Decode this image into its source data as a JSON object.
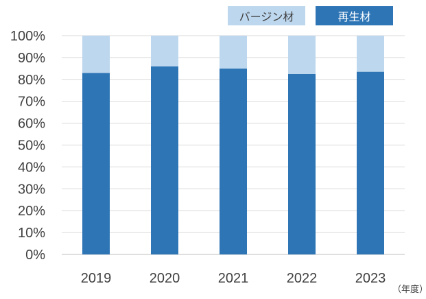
{
  "chart_data": {
    "type": "bar",
    "stacked": true,
    "categories": [
      "2019",
      "2020",
      "2021",
      "2022",
      "2023"
    ],
    "series": [
      {
        "name": "再生材",
        "values": [
          83,
          86,
          85,
          82.5,
          83.5
        ],
        "color": "#2e75b6"
      },
      {
        "name": "バージン材",
        "values": [
          17,
          14,
          15,
          17.5,
          16.5
        ],
        "color": "#bdd7ee"
      }
    ],
    "y_ticks": [
      "0%",
      "10%",
      "20%",
      "30%",
      "40%",
      "50%",
      "60%",
      "70%",
      "80%",
      "90%",
      "100%"
    ],
    "ylim": [
      0,
      100
    ],
    "x_unit": "（年度）",
    "grid": true,
    "legend_position": "top-right"
  }
}
